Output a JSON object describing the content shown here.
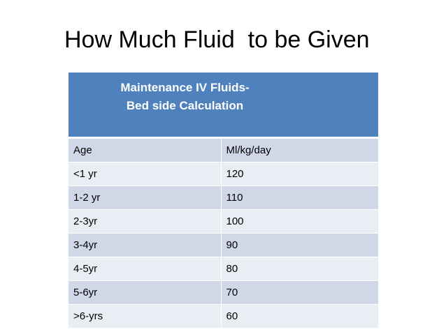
{
  "slide": {
    "title": "How Much Fluid  to be Given"
  },
  "table": {
    "header_line1": "Maintenance IV Fluids-",
    "header_line2": "Bed side Calculation",
    "rows": [
      {
        "age": "Age",
        "value": "Ml/kg/day"
      },
      {
        "age": "<1 yr",
        "value": "120"
      },
      {
        "age": "1-2 yr",
        "value": "110"
      },
      {
        "age": "2-3yr",
        "value": "100"
      },
      {
        "age": "3-4yr",
        "value": "90"
      },
      {
        "age": "4-5yr",
        "value": "80"
      },
      {
        "age": "5-6yr",
        "value": "70"
      },
      {
        "age": ">6-yrs",
        "value": "60"
      }
    ]
  },
  "colors": {
    "header_bg": "#4f81bd",
    "row_dark": "#d0d8e8",
    "row_light": "#e9edf4"
  }
}
